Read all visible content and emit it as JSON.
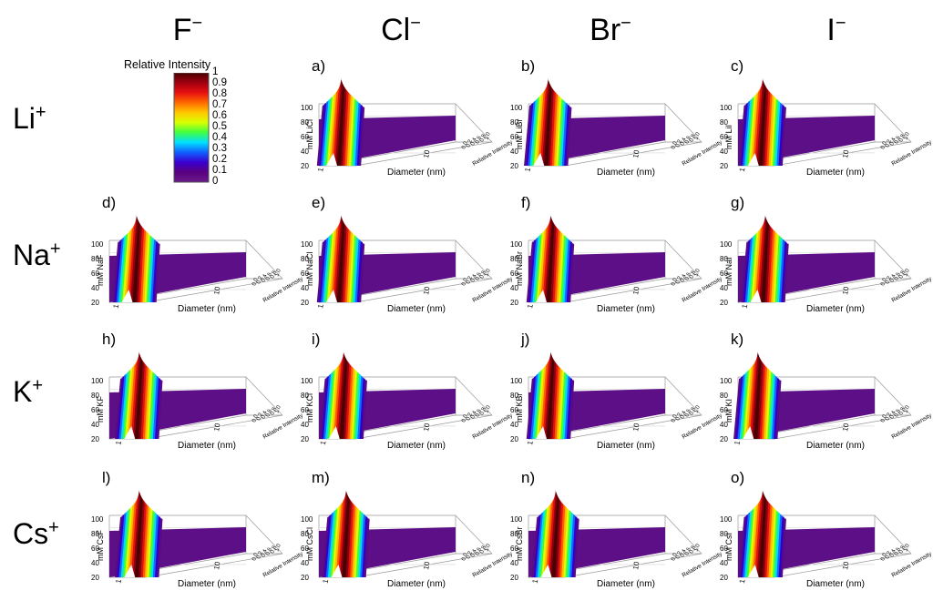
{
  "columns": [
    {
      "ion": "F",
      "charge": "−"
    },
    {
      "ion": "Cl",
      "charge": "−"
    },
    {
      "ion": "Br",
      "charge": "−"
    },
    {
      "ion": "I",
      "charge": "−"
    }
  ],
  "rows": [
    {
      "ion": "Li",
      "charge": "+"
    },
    {
      "ion": "Na",
      "charge": "+"
    },
    {
      "ion": "K",
      "charge": "+"
    },
    {
      "ion": "Cs",
      "charge": "+"
    }
  ],
  "colorbar": {
    "title": "Relative Intensity",
    "ticks": [
      "1",
      "0.9",
      "0.8",
      "0.7",
      "0.6",
      "0.5",
      "0.4",
      "0.3",
      "0.2",
      "0.1",
      "0"
    ],
    "colors": [
      "#4a0000",
      "#a00010",
      "#e81010",
      "#ff6a00",
      "#ffc800",
      "#d8ff00",
      "#40ff40",
      "#00e0ff",
      "#1060ff",
      "#3a00d0",
      "#5a0080",
      "#6a1a8a"
    ]
  },
  "chart_data": {
    "type": "surface",
    "xlabel": "Diameter (nm)",
    "zlabel": "Relative Intensity",
    "x_ticks": [
      "1",
      "10"
    ],
    "y_ticks": [
      "20",
      "40",
      "60",
      "80",
      "100"
    ],
    "z_ticks": [
      "0.0",
      "0.2",
      "0.4",
      "0.6",
      "0.8",
      "1.0"
    ],
    "panels": [
      {
        "letter": "a)",
        "ylabel": "mM LiCl",
        "peak_diameter_nm": 1.2
      },
      {
        "letter": "b)",
        "ylabel": "mM LiBr",
        "peak_diameter_nm": 1.15
      },
      {
        "letter": "c)",
        "ylabel": "mM LiI",
        "peak_diameter_nm": 1.25
      },
      {
        "letter": "d)",
        "ylabel": "mM NaF",
        "peak_diameter_nm": 1.3
      },
      {
        "letter": "e)",
        "ylabel": "mM NaCl",
        "peak_diameter_nm": 1.2
      },
      {
        "letter": "f)",
        "ylabel": "mM NaBr",
        "peak_diameter_nm": 1.2
      },
      {
        "letter": "g)",
        "ylabel": "mM NaI",
        "peak_diameter_nm": 1.3
      },
      {
        "letter": "h)",
        "ylabel": "mM KF",
        "peak_diameter_nm": 1.35
      },
      {
        "letter": "i)",
        "ylabel": "mM KCl",
        "peak_diameter_nm": 1.25
      },
      {
        "letter": "j)",
        "ylabel": "mM KBr",
        "peak_diameter_nm": 1.2
      },
      {
        "letter": "k)",
        "ylabel": "mM KI",
        "peak_diameter_nm": 1.15
      },
      {
        "letter": "l)",
        "ylabel": "mM CsF",
        "peak_diameter_nm": 1.35
      },
      {
        "letter": "m)",
        "ylabel": "mM CsCl",
        "peak_diameter_nm": 1.3
      },
      {
        "letter": "n)",
        "ylabel": "mM CsBr",
        "peak_diameter_nm": 1.3
      },
      {
        "letter": "o)",
        "ylabel": "mM CsI",
        "peak_diameter_nm": 1.25
      }
    ]
  }
}
